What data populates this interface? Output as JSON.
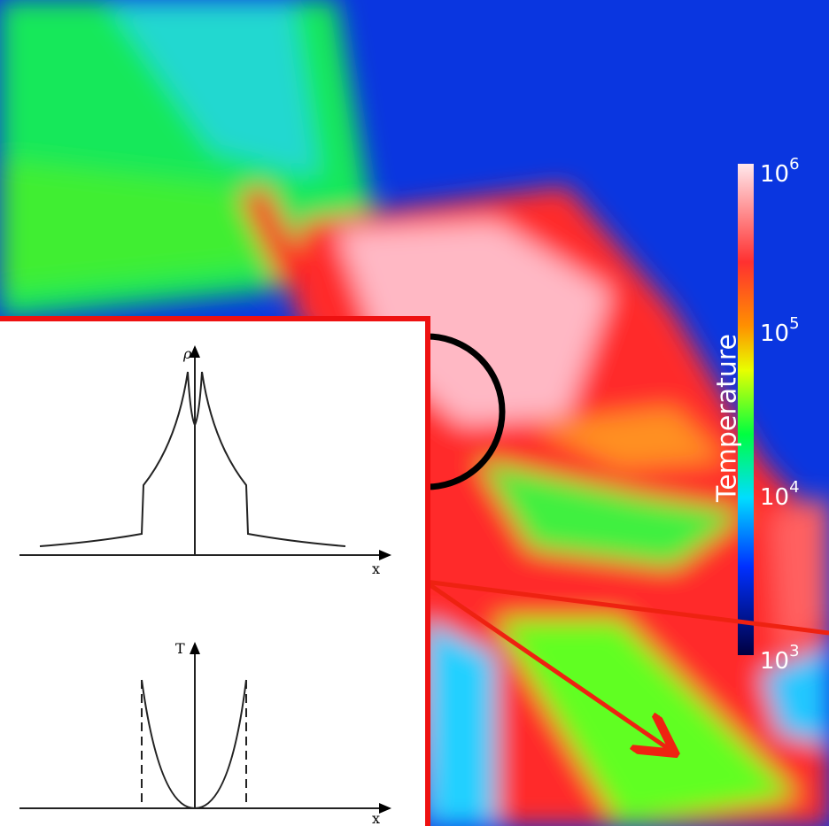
{
  "colorbar": {
    "label": "Temperature",
    "ticks": [
      {
        "base": "10",
        "exponent": "6"
      },
      {
        "base": "10",
        "exponent": "5"
      },
      {
        "base": "10",
        "exponent": "4"
      },
      {
        "base": "10",
        "exponent": "3"
      }
    ]
  },
  "inset": {
    "density_plot": {
      "y_label": "ρ",
      "x_label": "x"
    },
    "temperature_plot": {
      "y_label": "T",
      "x_label": "x"
    }
  }
}
